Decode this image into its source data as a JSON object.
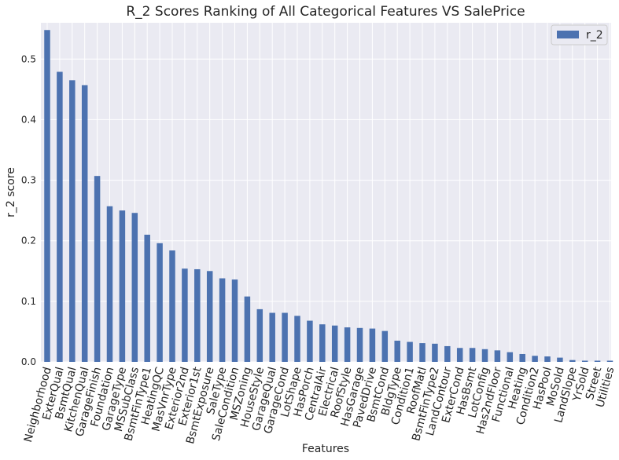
{
  "chart_data": {
    "type": "bar",
    "title": "R_2 Scores Ranking of All Categorical Features VS SalePrice",
    "xlabel": "Features",
    "ylabel": "r_2 score",
    "ylim": [
      0,
      0.56
    ],
    "yticks": [
      "0.0",
      "0.1",
      "0.2",
      "0.3",
      "0.4",
      "0.5"
    ],
    "grid": true,
    "legend_position": "top-right",
    "series": [
      {
        "name": "r_2",
        "color": "#4c72b0",
        "values": [
          0.548,
          0.479,
          0.465,
          0.457,
          0.307,
          0.257,
          0.25,
          0.246,
          0.21,
          0.196,
          0.184,
          0.154,
          0.153,
          0.15,
          0.138,
          0.136,
          0.108,
          0.087,
          0.081,
          0.081,
          0.076,
          0.068,
          0.062,
          0.06,
          0.057,
          0.056,
          0.055,
          0.051,
          0.035,
          0.033,
          0.031,
          0.03,
          0.026,
          0.023,
          0.023,
          0.021,
          0.019,
          0.016,
          0.013,
          0.01,
          0.009,
          0.007,
          0.003,
          0.002,
          0.002,
          0.002
        ]
      }
    ],
    "categories": [
      "Neighborhood",
      "ExterQual",
      "BsmtQual",
      "KitchenQual",
      "GarageFinish",
      "Foundation",
      "GarageType",
      "MSSubClass",
      "BsmtFinType1",
      "HeatingQC",
      "MasVnrType",
      "Exterior2nd",
      "Exterior1st",
      "BsmtExposure",
      "SaleType",
      "SaleCondition",
      "MSZoning",
      "HouseStyle",
      "GarageQual",
      "GarageCond",
      "LotShape",
      "HasPorch",
      "CentralAir",
      "Electrical",
      "RoofStyle",
      "HasGarage",
      "PavedDrive",
      "BsmtCond",
      "BldgType",
      "Condition1",
      "RoofMatl",
      "BsmtFinType2",
      "LandContour",
      "ExterCond",
      "HasBsmt",
      "LotConfig",
      "Has2ndFloor",
      "Functional",
      "Heating",
      "Condition2",
      "HasPool",
      "MoSold",
      "LandSlope",
      "YrSold",
      "Street",
      "Utilities"
    ]
  }
}
